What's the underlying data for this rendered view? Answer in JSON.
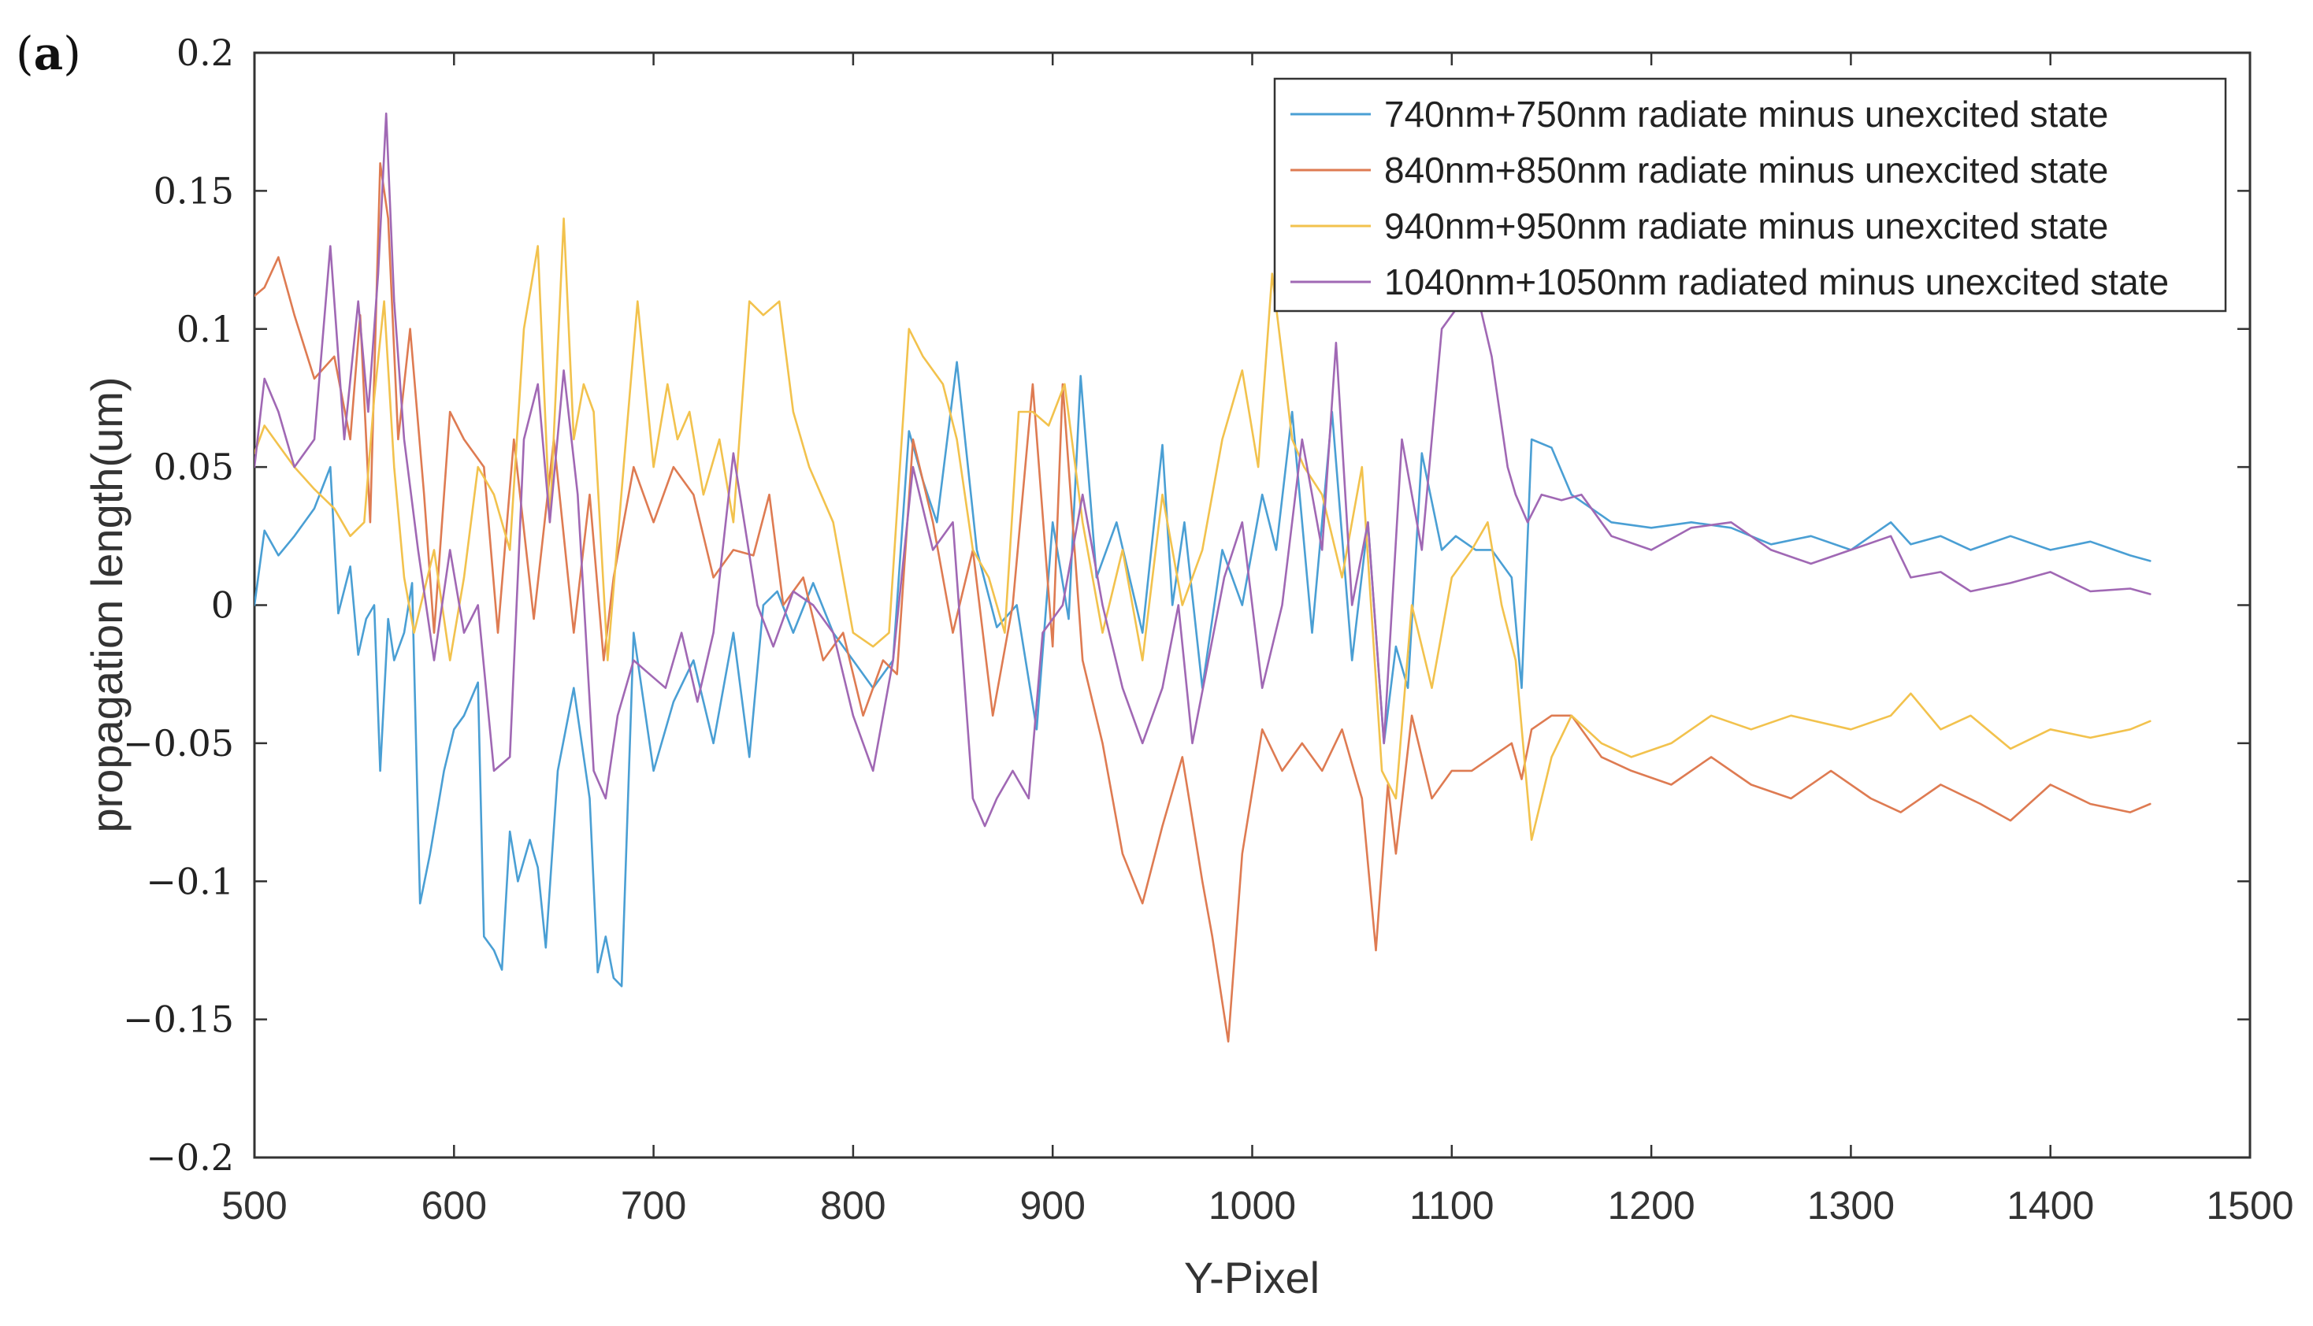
{
  "panel_label": {
    "open": "(",
    "letter": "a",
    "close": ")"
  },
  "chart_data": {
    "type": "line",
    "title": "",
    "xlabel": "Y-Pixel",
    "ylabel": "propagation length(um)",
    "xlim": [
      500,
      1500
    ],
    "ylim": [
      -0.2,
      0.2
    ],
    "xticks": [
      500,
      600,
      700,
      800,
      900,
      1000,
      1100,
      1200,
      1300,
      1400,
      1500
    ],
    "xtick_labels": [
      "500",
      "600",
      "700",
      "800",
      "900",
      "1000",
      "1100",
      "1200",
      "1300",
      "1400",
      "1500"
    ],
    "yticks": [
      0.2,
      0.15,
      0.1,
      0.05,
      0,
      -0.05,
      -0.1,
      -0.15,
      -0.2
    ],
    "ytick_labels": [
      "0.2",
      "0.15",
      "0.1",
      "0.05",
      "0",
      "−0.05",
      "−0.1",
      "−0.15",
      "−0.2"
    ],
    "grid": false,
    "legend_position": "top-right",
    "series": [
      {
        "name": "740nm+750nm radiate minus unexcited state",
        "color": "#4a9fd4",
        "x": [
          500,
          505,
          512,
          520,
          530,
          538,
          542,
          548,
          552,
          556,
          560,
          563,
          567,
          570,
          575,
          579,
          583,
          588,
          595,
          600,
          605,
          612,
          615,
          620,
          624,
          628,
          632,
          638,
          642,
          646,
          652,
          660,
          668,
          672,
          676,
          680,
          684,
          690,
          700,
          710,
          720,
          730,
          740,
          748,
          755,
          762,
          770,
          780,
          790,
          800,
          810,
          820,
          828,
          835,
          842,
          852,
          862,
          872,
          882,
          892,
          900,
          908,
          914,
          922,
          932,
          945,
          955,
          960,
          966,
          975,
          985,
          995,
          1005,
          1012,
          1020,
          1030,
          1040,
          1050,
          1058,
          1066,
          1072,
          1078,
          1085,
          1095,
          1102,
          1112,
          1120,
          1130,
          1135,
          1140,
          1150,
          1160,
          1170,
          1180,
          1200,
          1220,
          1240,
          1260,
          1280,
          1300,
          1320,
          1330,
          1345,
          1360,
          1380,
          1400,
          1420,
          1440,
          1450
        ],
        "y": [
          0.0,
          0.027,
          0.018,
          0.025,
          0.035,
          0.05,
          -0.003,
          0.014,
          -0.018,
          -0.005,
          0.0,
          -0.06,
          -0.005,
          -0.02,
          -0.01,
          0.008,
          -0.108,
          -0.09,
          -0.06,
          -0.045,
          -0.04,
          -0.028,
          -0.12,
          -0.125,
          -0.132,
          -0.082,
          -0.1,
          -0.085,
          -0.095,
          -0.124,
          -0.06,
          -0.03,
          -0.07,
          -0.133,
          -0.12,
          -0.135,
          -0.138,
          -0.01,
          -0.06,
          -0.035,
          -0.02,
          -0.05,
          -0.01,
          -0.055,
          0.0,
          0.005,
          -0.01,
          0.008,
          -0.01,
          -0.02,
          -0.03,
          -0.02,
          0.063,
          0.045,
          0.03,
          0.088,
          0.02,
          -0.008,
          0.0,
          -0.045,
          0.03,
          -0.005,
          0.083,
          0.01,
          0.03,
          -0.01,
          0.058,
          0.0,
          0.03,
          -0.03,
          0.02,
          0.0,
          0.04,
          0.02,
          0.07,
          -0.01,
          0.07,
          -0.02,
          0.03,
          -0.05,
          -0.015,
          -0.03,
          0.055,
          0.02,
          0.025,
          0.02,
          0.02,
          0.01,
          -0.03,
          0.06,
          0.057,
          0.04,
          0.035,
          0.03,
          0.028,
          0.03,
          0.028,
          0.022,
          0.025,
          0.02,
          0.03,
          0.022,
          0.025,
          0.02,
          0.025,
          0.02,
          0.023,
          0.018,
          0.016
        ]
      },
      {
        "name": "840nm+850nm radiate minus unexcited state",
        "color": "#de7b52",
        "x": [
          500,
          505,
          512,
          520,
          530,
          540,
          548,
          553,
          558,
          563,
          567,
          572,
          578,
          585,
          590,
          598,
          605,
          615,
          622,
          630,
          640,
          650,
          660,
          668,
          675,
          680,
          690,
          700,
          710,
          720,
          730,
          740,
          750,
          758,
          765,
          775,
          785,
          795,
          805,
          815,
          822,
          830,
          840,
          850,
          860,
          870,
          880,
          890,
          900,
          905,
          915,
          925,
          935,
          945,
          955,
          965,
          975,
          980,
          988,
          995,
          1005,
          1015,
          1025,
          1035,
          1045,
          1055,
          1062,
          1068,
          1072,
          1080,
          1090,
          1100,
          1110,
          1120,
          1130,
          1135,
          1140,
          1150,
          1160,
          1175,
          1190,
          1210,
          1230,
          1250,
          1270,
          1290,
          1310,
          1325,
          1345,
          1365,
          1380,
          1400,
          1420,
          1440,
          1450
        ],
        "y": [
          0.112,
          0.115,
          0.126,
          0.105,
          0.082,
          0.09,
          0.06,
          0.105,
          0.03,
          0.16,
          0.14,
          0.06,
          0.1,
          0.04,
          -0.01,
          0.07,
          0.06,
          0.05,
          -0.01,
          0.06,
          -0.005,
          0.06,
          -0.01,
          0.04,
          -0.02,
          0.01,
          0.05,
          0.03,
          0.05,
          0.04,
          0.01,
          0.02,
          0.018,
          0.04,
          0.0,
          0.01,
          -0.02,
          -0.01,
          -0.04,
          -0.02,
          -0.025,
          0.06,
          0.03,
          -0.01,
          0.02,
          -0.04,
          0.0,
          0.08,
          -0.015,
          0.08,
          -0.02,
          -0.05,
          -0.09,
          -0.108,
          -0.08,
          -0.055,
          -0.1,
          -0.12,
          -0.158,
          -0.09,
          -0.045,
          -0.06,
          -0.05,
          -0.06,
          -0.045,
          -0.07,
          -0.125,
          -0.065,
          -0.09,
          -0.04,
          -0.07,
          -0.06,
          -0.06,
          -0.055,
          -0.05,
          -0.063,
          -0.045,
          -0.04,
          -0.04,
          -0.055,
          -0.06,
          -0.065,
          -0.055,
          -0.065,
          -0.07,
          -0.06,
          -0.07,
          -0.075,
          -0.065,
          -0.072,
          -0.078,
          -0.065,
          -0.072,
          -0.075,
          -0.072
        ]
      },
      {
        "name": "940nm+950nm radiate minus unexcited state",
        "color": "#f2c24d",
        "x": [
          500,
          505,
          512,
          520,
          530,
          540,
          548,
          555,
          560,
          565,
          570,
          575,
          580,
          590,
          598,
          605,
          612,
          620,
          628,
          635,
          642,
          648,
          655,
          660,
          665,
          670,
          677,
          685,
          692,
          700,
          707,
          712,
          718,
          725,
          733,
          740,
          748,
          755,
          763,
          770,
          778,
          790,
          800,
          810,
          818,
          828,
          835,
          845,
          852,
          860,
          868,
          876,
          883,
          890,
          898,
          906,
          915,
          925,
          935,
          945,
          955,
          965,
          975,
          985,
          995,
          1003,
          1010,
          1020,
          1026,
          1035,
          1045,
          1055,
          1065,
          1072,
          1080,
          1090,
          1100,
          1110,
          1118,
          1125,
          1132,
          1140,
          1150,
          1160,
          1175,
          1190,
          1210,
          1230,
          1250,
          1270,
          1300,
          1320,
          1330,
          1345,
          1360,
          1380,
          1400,
          1420,
          1440,
          1450
        ],
        "y": [
          0.055,
          0.065,
          0.058,
          0.05,
          0.042,
          0.035,
          0.025,
          0.03,
          0.075,
          0.11,
          0.05,
          0.01,
          -0.01,
          0.02,
          -0.02,
          0.01,
          0.05,
          0.04,
          0.02,
          0.1,
          0.13,
          0.03,
          0.14,
          0.06,
          0.08,
          0.07,
          -0.02,
          0.05,
          0.11,
          0.05,
          0.08,
          0.06,
          0.07,
          0.04,
          0.06,
          0.03,
          0.11,
          0.105,
          0.11,
          0.07,
          0.05,
          0.03,
          -0.01,
          -0.015,
          -0.01,
          0.1,
          0.09,
          0.08,
          0.06,
          0.02,
          0.01,
          -0.01,
          0.07,
          0.07,
          0.065,
          0.08,
          0.03,
          -0.01,
          0.02,
          -0.02,
          0.04,
          0.0,
          0.02,
          0.06,
          0.085,
          0.05,
          0.12,
          0.06,
          0.05,
          0.04,
          0.01,
          0.05,
          -0.06,
          -0.07,
          0.0,
          -0.03,
          0.01,
          0.02,
          0.03,
          0.0,
          -0.02,
          -0.085,
          -0.055,
          -0.04,
          -0.05,
          -0.055,
          -0.05,
          -0.04,
          -0.045,
          -0.04,
          -0.045,
          -0.04,
          -0.032,
          -0.045,
          -0.04,
          -0.052,
          -0.045,
          -0.048,
          -0.045,
          -0.042
        ]
      },
      {
        "name": "1040nm+1050nm radiated minus unexcited state",
        "color": "#a068b4",
        "x": [
          500,
          505,
          512,
          520,
          530,
          538,
          545,
          552,
          557,
          562,
          566,
          570,
          575,
          582,
          590,
          598,
          605,
          612,
          620,
          628,
          635,
          642,
          648,
          655,
          662,
          670,
          676,
          682,
          690,
          698,
          706,
          714,
          722,
          730,
          740,
          752,
          760,
          770,
          780,
          790,
          800,
          810,
          820,
          830,
          840,
          850,
          860,
          866,
          872,
          880,
          888,
          895,
          905,
          915,
          925,
          935,
          945,
          955,
          963,
          970,
          978,
          986,
          995,
          1005,
          1015,
          1025,
          1035,
          1042,
          1050,
          1058,
          1066,
          1075,
          1085,
          1095,
          1105,
          1112,
          1120,
          1128,
          1132,
          1138,
          1145,
          1155,
          1165,
          1180,
          1200,
          1220,
          1240,
          1260,
          1280,
          1300,
          1320,
          1330,
          1345,
          1360,
          1380,
          1400,
          1420,
          1440,
          1450
        ],
        "y": [
          0.05,
          0.082,
          0.07,
          0.05,
          0.06,
          0.13,
          0.06,
          0.11,
          0.07,
          0.12,
          0.178,
          0.11,
          0.06,
          0.02,
          -0.02,
          0.02,
          -0.01,
          0.0,
          -0.06,
          -0.055,
          0.06,
          0.08,
          0.03,
          0.085,
          0.04,
          -0.06,
          -0.07,
          -0.04,
          -0.02,
          -0.025,
          -0.03,
          -0.01,
          -0.035,
          -0.01,
          0.055,
          0.0,
          -0.015,
          0.005,
          0.0,
          -0.01,
          -0.04,
          -0.06,
          -0.02,
          0.05,
          0.02,
          0.03,
          -0.07,
          -0.08,
          -0.07,
          -0.06,
          -0.07,
          -0.01,
          0.0,
          0.04,
          0.0,
          -0.03,
          -0.05,
          -0.03,
          0.0,
          -0.05,
          -0.02,
          0.01,
          0.03,
          -0.03,
          0.0,
          0.06,
          0.02,
          0.095,
          0.0,
          0.03,
          -0.05,
          0.06,
          0.02,
          0.1,
          0.11,
          0.115,
          0.09,
          0.05,
          0.04,
          0.03,
          0.04,
          0.038,
          0.04,
          0.025,
          0.02,
          0.028,
          0.03,
          0.02,
          0.015,
          0.02,
          0.025,
          0.01,
          0.012,
          0.005,
          0.008,
          0.012,
          0.005,
          0.006,
          0.004
        ]
      }
    ]
  }
}
